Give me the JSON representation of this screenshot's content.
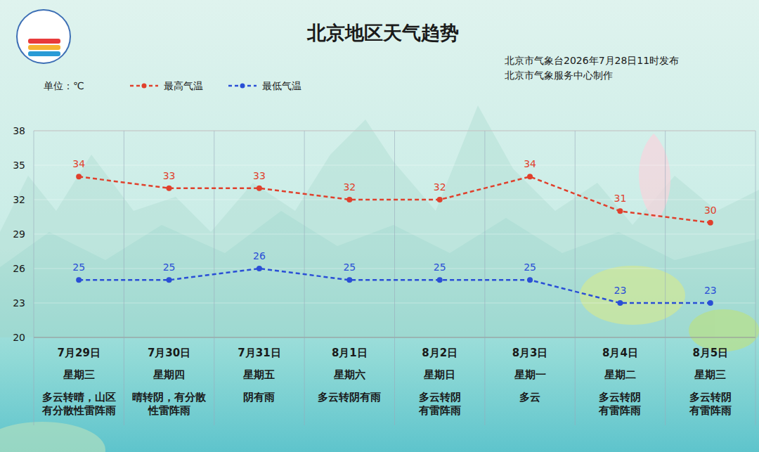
{
  "chart_data": {
    "type": "line",
    "title": "北京地区天气趋势",
    "publisher": [
      "北京市气象台2026年7月28日11时发布",
      "北京市气象服务中心制作"
    ],
    "unit_label": "单位：℃",
    "categories": [
      "7月29日",
      "7月30日",
      "7月31日",
      "8月1日",
      "8月2日",
      "8月3日",
      "8月4日",
      "8月5日"
    ],
    "weekdays": [
      "星期三",
      "星期四",
      "星期五",
      "星期六",
      "星期日",
      "星期一",
      "星期二",
      "星期三"
    ],
    "weather": [
      [
        "多云转晴，山区",
        "有分散性雷阵雨"
      ],
      [
        "晴转阴，有分散",
        "性雷阵雨"
      ],
      [
        "阴有雨"
      ],
      [
        "多云转阴有雨"
      ],
      [
        "多云转阴",
        "有雷阵雨"
      ],
      [
        "多云"
      ],
      [
        "多云转阴",
        "有雷阵雨"
      ],
      [
        "多云转阴",
        "有雷阵雨"
      ]
    ],
    "series": [
      {
        "name": "最高气温",
        "color": "#e0402c",
        "values": [
          34,
          33,
          33,
          32,
          32,
          34,
          31,
          30
        ],
        "line_style": "dashed",
        "marker": "circle"
      },
      {
        "name": "最低气温",
        "color": "#2a4fd6",
        "values": [
          25,
          25,
          26,
          25,
          25,
          25,
          23,
          23
        ],
        "line_style": "dashed",
        "marker": "circle"
      }
    ],
    "ylim": [
      20,
      38
    ],
    "yticks": [
      20,
      23,
      26,
      29,
      32,
      35,
      38
    ],
    "grid": true,
    "data_labels": true,
    "legend": "top-left"
  }
}
